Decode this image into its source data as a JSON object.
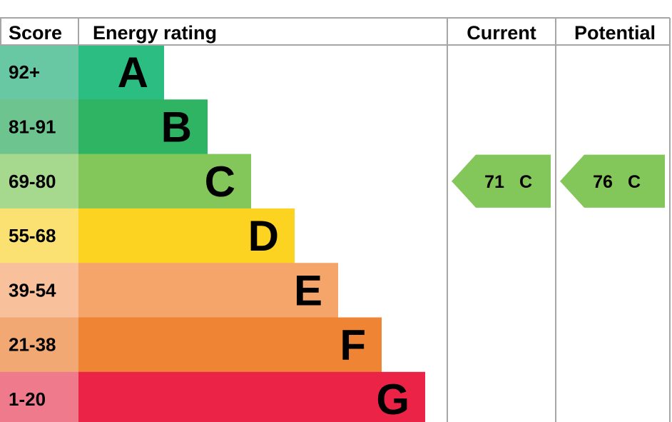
{
  "chart_data": {
    "type": "bar",
    "headers": {
      "score": "Score",
      "energy_rating": "Energy rating",
      "current": "Current",
      "potential": "Potential"
    },
    "bands": [
      {
        "score": "92+",
        "letter": "A",
        "color": "#2cbd83",
        "score_bg": "#67c8a3"
      },
      {
        "score": "81-91",
        "letter": "B",
        "color": "#2fb464",
        "score_bg": "#6ec48e"
      },
      {
        "score": "69-80",
        "letter": "C",
        "color": "#83c65a",
        "score_bg": "#a6d88e"
      },
      {
        "score": "55-68",
        "letter": "D",
        "color": "#fcd321",
        "score_bg": "#fbe172"
      },
      {
        "score": "39-54",
        "letter": "E",
        "color": "#f5a56a",
        "score_bg": "#f8c19b"
      },
      {
        "score": "21-38",
        "letter": "F",
        "color": "#ef8434",
        "score_bg": "#f2a872"
      },
      {
        "score": "1-20",
        "letter": "G",
        "color": "#eb2347",
        "score_bg": "#ef7a8c"
      }
    ],
    "current": {
      "value": 71,
      "letter": "C",
      "color": "#83c65a"
    },
    "potential": {
      "value": 76,
      "letter": "C",
      "color": "#83c65a"
    }
  }
}
